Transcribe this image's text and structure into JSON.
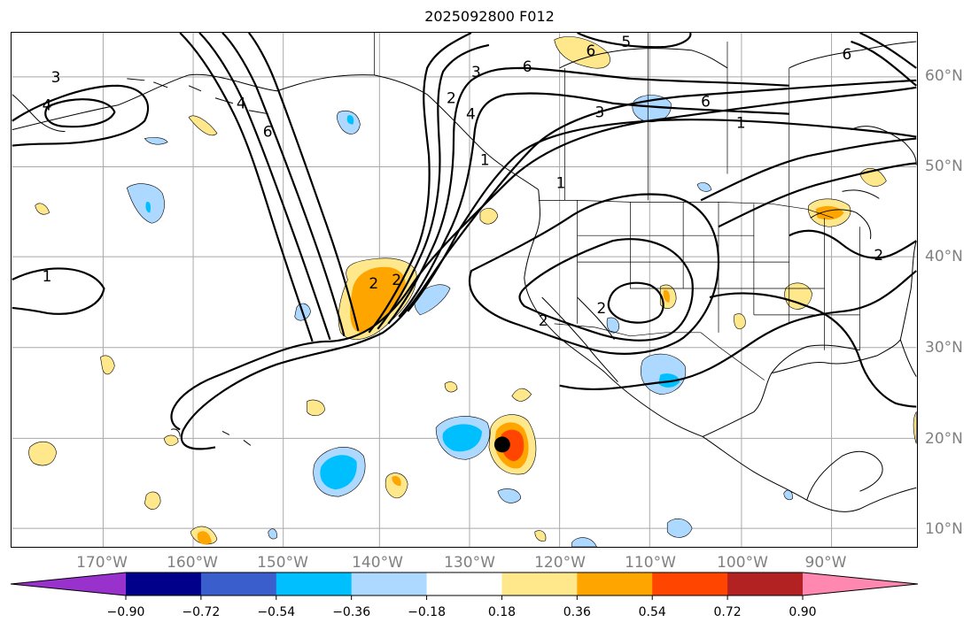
{
  "title": "2025092800 F012",
  "lat_labels": [
    "60°N",
    "50°N",
    "40°N",
    "30°N",
    "20°N",
    "10°N"
  ],
  "lon_labels": [
    "170°W",
    "160°W",
    "150°W",
    "140°W",
    "130°W",
    "120°W",
    "110°W",
    "100°W",
    "90°W"
  ],
  "colorbar": {
    "ticks": [
      "−0.90",
      "−0.72",
      "−0.54",
      "−0.36",
      "−0.18",
      "0.18",
      "0.36",
      "0.54",
      "0.72",
      "0.90"
    ],
    "colors": [
      "#9932cc",
      "#00008b",
      "#3a5fcd",
      "#00bfff",
      "#add8ff",
      "#ffffff",
      "#ffe78c",
      "#ffa500",
      "#ff4500",
      "#b22222",
      "#ff88b0"
    ]
  },
  "contour_labels": [
    "3",
    "4",
    "6",
    "5",
    "6",
    "3",
    "2",
    "4",
    "6",
    "3",
    "6",
    "1",
    "1",
    "1",
    "2",
    "2",
    "2",
    "2",
    "2",
    "1",
    "6",
    "4"
  ],
  "marker": "storm-center-dot"
}
